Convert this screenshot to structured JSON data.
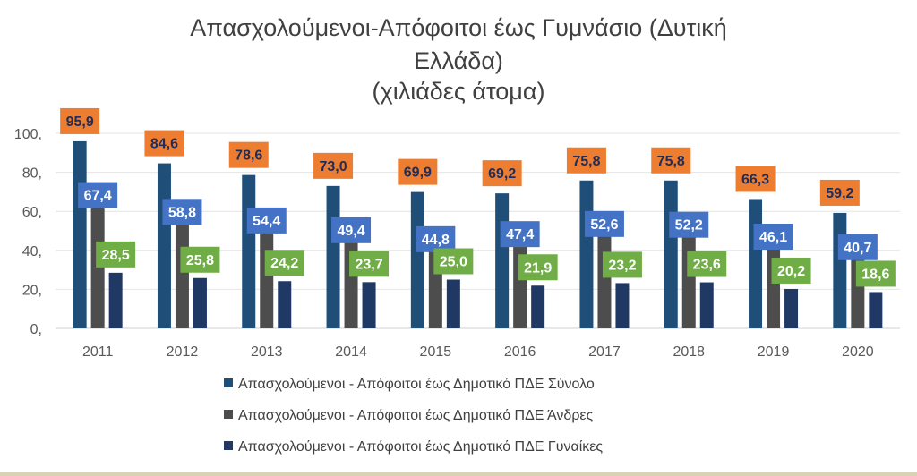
{
  "chart_data": {
    "type": "bar",
    "title_lines": [
      "Απασχολούμενοι-Απόφοιτοι έως Γυμνάσιο (Δυτική",
      "Ελλάδα)",
      "(χιλιάδες άτομα)"
    ],
    "categories": [
      "2011",
      "2012",
      "2013",
      "2014",
      "2015",
      "2016",
      "2017",
      "2018",
      "2019",
      "2020"
    ],
    "series": [
      {
        "name": "Απασχολούμενοι - Απόφοιτοι έως Δημοτικό ΠΔΕ Σύνολο",
        "values": [
          95.9,
          84.6,
          78.6,
          73.0,
          69.9,
          69.2,
          75.8,
          75.8,
          66.3,
          59.2
        ],
        "labels": [
          "95,9",
          "84,6",
          "78,6",
          "73,0",
          "69,9",
          "69,2",
          "75,8",
          "75,8",
          "66,3",
          "59,2"
        ],
        "color": "#1f4e79",
        "label_bg": "#ed7d31",
        "label_fg": "#1f2d5a"
      },
      {
        "name": "Απασχολούμενοι - Απόφοιτοι έως Δημοτικό ΠΔΕ Άνδρες",
        "values": [
          67.4,
          58.8,
          54.4,
          49.4,
          44.8,
          47.4,
          52.6,
          52.2,
          46.1,
          40.7
        ],
        "labels": [
          "67,4",
          "58,8",
          "54,4",
          "49,4",
          "44,8",
          "47,4",
          "52,6",
          "52,2",
          "46,1",
          "40,7"
        ],
        "color": "#4d4d4d",
        "label_bg": "#4472c4",
        "label_fg": "#ffffff"
      },
      {
        "name": "Απασχολούμενοι - Απόφοιτοι έως Δημοτικό ΠΔΕ Γυναίκες",
        "values": [
          28.5,
          25.8,
          24.2,
          23.7,
          25.0,
          21.9,
          23.2,
          23.6,
          20.2,
          18.6
        ],
        "labels": [
          "28,5",
          "25,8",
          "24,2",
          "23,7",
          "25,0",
          "21,9",
          "23,2",
          "23,6",
          "20,2",
          "18,6"
        ],
        "color": "#203864",
        "label_bg": "#70ad47",
        "label_fg": "#ffffff"
      }
    ],
    "y_ticks": [
      "0,",
      "20,",
      "40,",
      "60,",
      "80,",
      "100,"
    ],
    "ylim": [
      0,
      100
    ],
    "grid": true,
    "legend_position": "bottom"
  }
}
